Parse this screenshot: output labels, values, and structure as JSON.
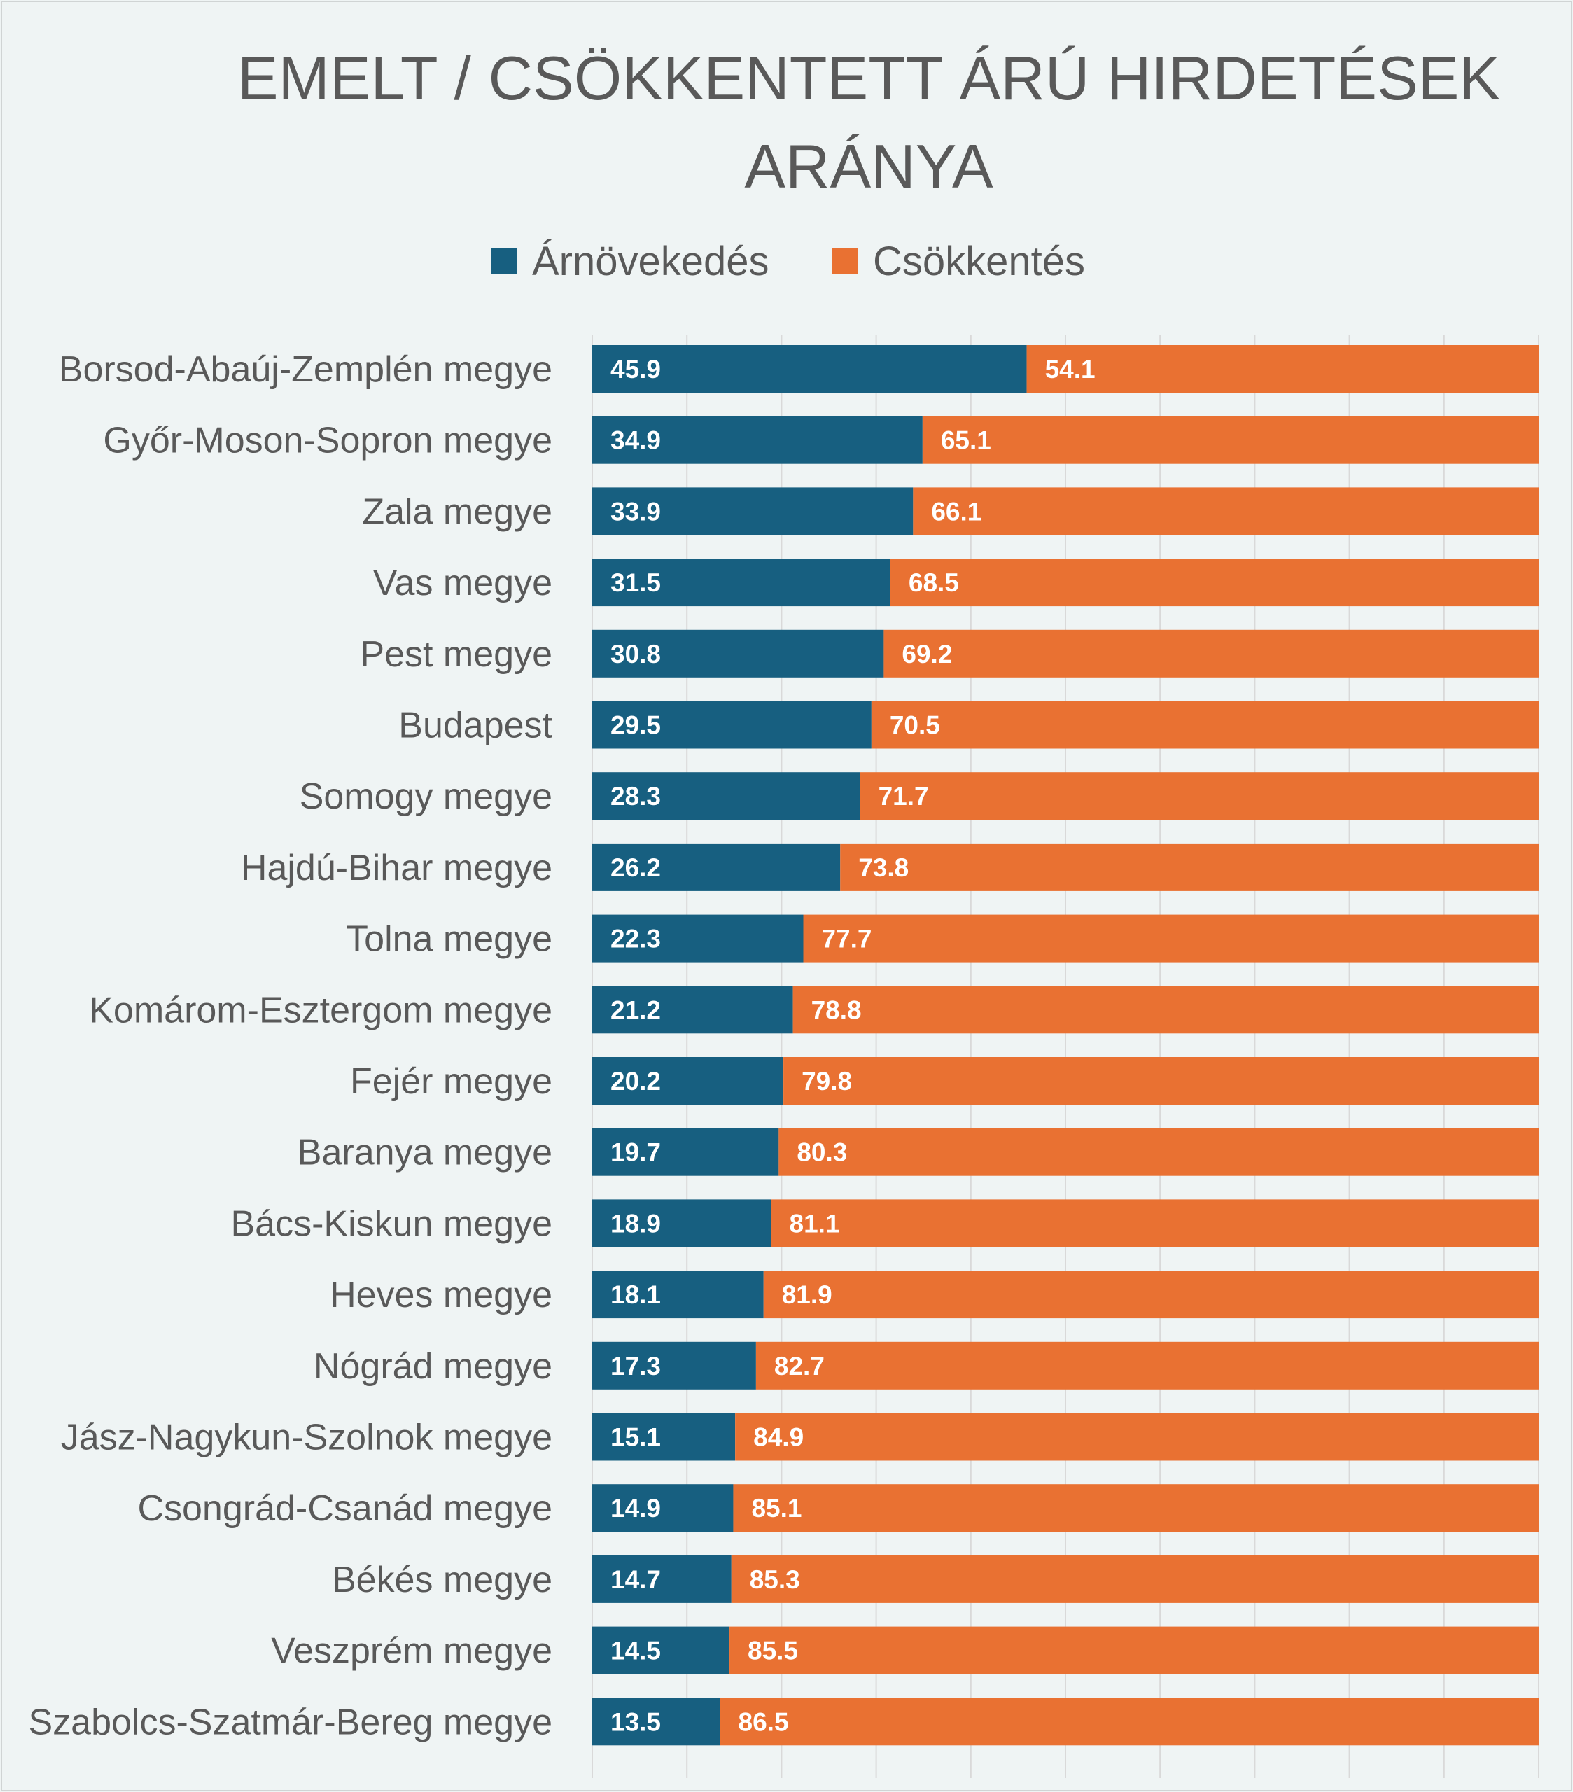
{
  "chart_data": {
    "type": "bar",
    "orientation": "horizontal",
    "stacked": true,
    "title_lines": [
      "EMELT / CSÖKKENTETT ÁRÚ HIRDETÉSEK",
      "ARÁNYA"
    ],
    "legend_placement": "top",
    "grid": true,
    "xlim": [
      0,
      100
    ],
    "categories": [
      "Borsod-Abaúj-Zemplén megye",
      "Győr-Moson-Sopron megye",
      "Zala megye",
      "Vas megye",
      "Pest megye",
      "Budapest",
      "Somogy megye",
      "Hajdú-Bihar megye",
      "Tolna megye",
      "Komárom-Esztergom megye",
      "Fejér megye",
      "Baranya megye",
      "Bács-Kiskun megye",
      "Heves megye",
      "Nógrád megye",
      "Jász-Nagykun-Szolnok megye",
      "Csongrád-Csanád megye",
      "Békés megye",
      "Veszprém megye",
      "Szabolcs-Szatmár-Bereg megye"
    ],
    "series": [
      {
        "name": "Árnövekedés",
        "color": "#175f80",
        "values": [
          45.9,
          34.9,
          33.9,
          31.5,
          30.8,
          29.5,
          28.3,
          26.2,
          22.3,
          21.2,
          20.2,
          19.7,
          18.9,
          18.1,
          17.3,
          15.1,
          14.9,
          14.7,
          14.5,
          13.5
        ]
      },
      {
        "name": "Csökkentés",
        "color": "#e97132",
        "values": [
          54.1,
          65.1,
          66.1,
          68.5,
          69.2,
          70.5,
          71.7,
          73.8,
          77.7,
          78.8,
          79.8,
          80.3,
          81.1,
          81.9,
          82.7,
          84.9,
          85.1,
          85.3,
          85.5,
          86.5
        ]
      }
    ]
  }
}
